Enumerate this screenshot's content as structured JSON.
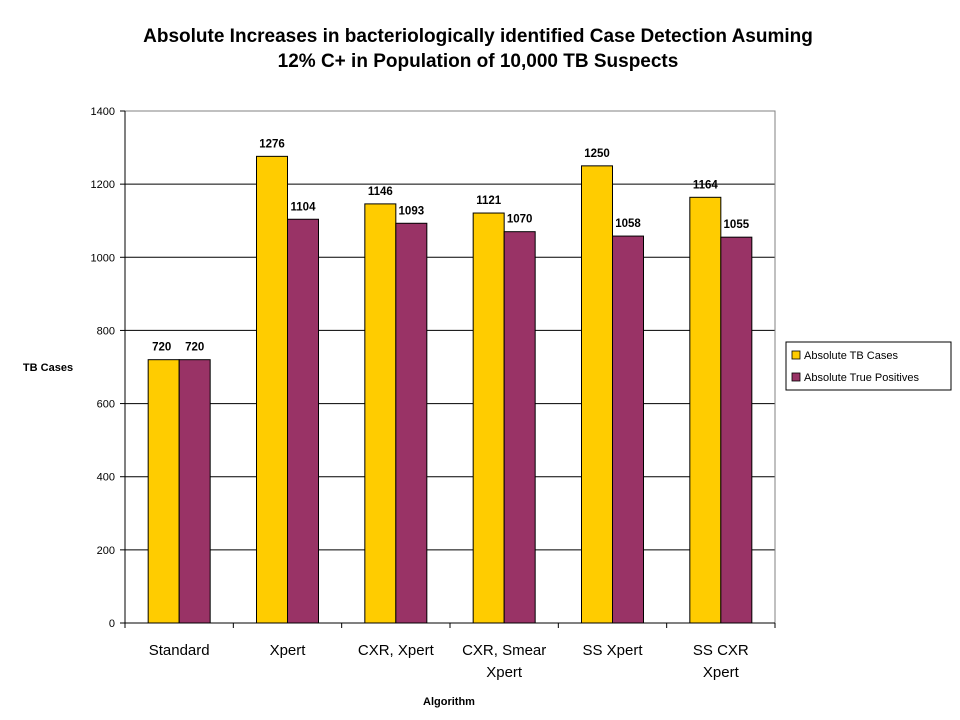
{
  "chart_data": {
    "type": "bar",
    "title_lines": [
      "Absolute Increases in bacteriologically identified Case Detection Asuming",
      "12% C+ in Population of 10,000 TB Suspects"
    ],
    "xlabel": "Algorithm",
    "ylabel": "TB Cases",
    "ylim": [
      0,
      1400
    ],
    "yticks": [
      "0",
      "200",
      "400",
      "600",
      "800",
      "1000",
      "1200",
      "1400"
    ],
    "categories": [
      [
        "Standard"
      ],
      [
        "Xpert"
      ],
      [
        "CXR, Xpert"
      ],
      [
        "CXR, Smear",
        "Xpert"
      ],
      [
        "SS Xpert"
      ],
      [
        "SS CXR",
        "Xpert"
      ]
    ],
    "series": [
      {
        "name": "Absolute TB Cases",
        "color": "#ffcc00",
        "values": [
          720,
          1276,
          1146,
          1121,
          1250,
          1164
        ]
      },
      {
        "name": "Absolute True Positives",
        "color": "#993366",
        "values": [
          720,
          1104,
          1093,
          1070,
          1058,
          1055
        ]
      }
    ],
    "data_labels": [
      [
        "720",
        "1276",
        "1146",
        "1121",
        "1250",
        "1164"
      ],
      [
        "720",
        "1104",
        "1093",
        "1070",
        "1058",
        "1055"
      ]
    ],
    "grid": true,
    "legend_position": "right",
    "plot_background": "#ffffff"
  }
}
